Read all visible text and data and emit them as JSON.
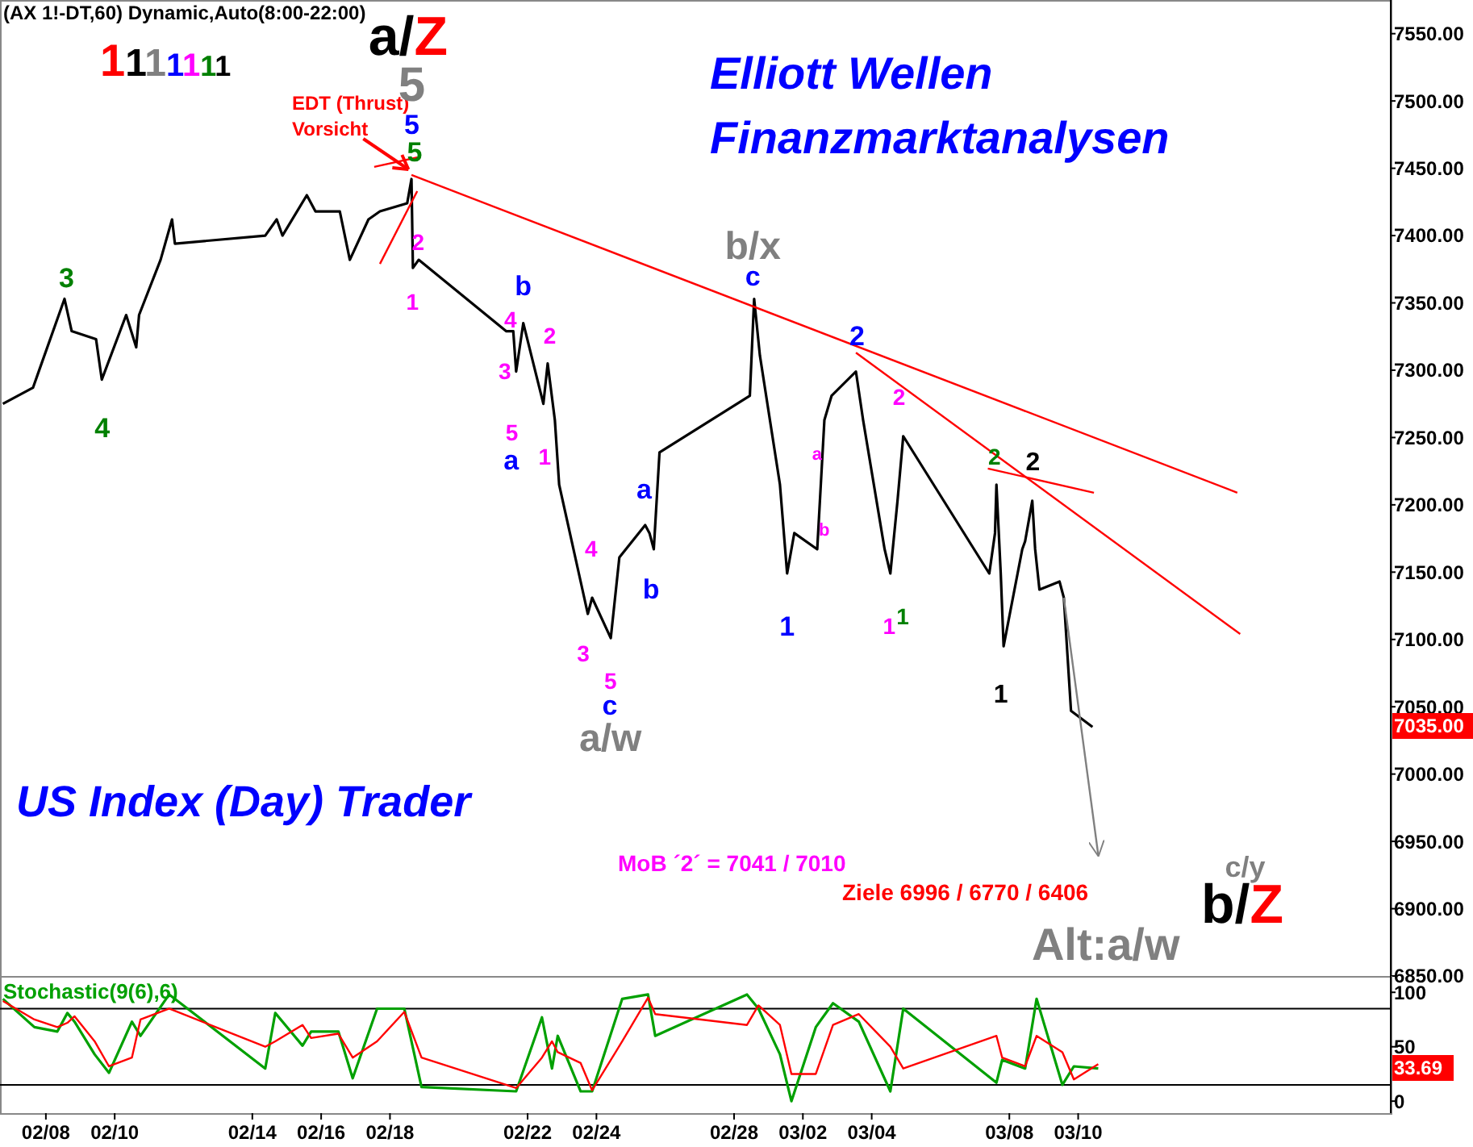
{
  "chart_data": [
    {
      "type": "line",
      "title": "Elliott Wellen",
      "subtitle": "Finanzmarktanalysen",
      "xlim": [
        "--02-06T16:00",
        "--03-19T02:00"
      ],
      "ylim": [
        6850,
        7575
      ],
      "yticks": [
        {
          "value": 6850,
          "label": "6850.00"
        },
        {
          "value": 6900,
          "label": "6900.00"
        },
        {
          "value": 6950,
          "label": "6950.00"
        },
        {
          "value": 7000,
          "label": "7000.00"
        },
        {
          "value": 7050,
          "label": "7050.00"
        },
        {
          "value": 7100,
          "label": "7100.00"
        },
        {
          "value": 7150,
          "label": "7150.00"
        },
        {
          "value": 7200,
          "label": "7200.00"
        },
        {
          "value": 7250,
          "label": "7250.00"
        },
        {
          "value": 7300,
          "label": "7300.00"
        },
        {
          "value": 7350,
          "label": "7350.00"
        },
        {
          "value": 7400,
          "label": "7400.00"
        },
        {
          "value": 7450,
          "label": "7450.00"
        },
        {
          "value": 7500,
          "label": "7500.00"
        },
        {
          "value": 7550,
          "label": "7550.00"
        }
      ],
      "tick_labels": "y",
      "grid": false,
      "series": [
        {
          "color": "#000000",
          "x": [
            "--02-06T18:00",
            "--02-07T15:00",
            "--02-07T19:00",
            "--02-08T13:00",
            "--02-08T18:00",
            "--02-09T11:00",
            "--02-09T15:00",
            "--02-10T08:00",
            "--02-10T15:00",
            "--02-10T17:00",
            "--02-11T08:00",
            "--02-11T16:00",
            "--02-11T18:00",
            "--02-14T09:00",
            "--02-14T17:00",
            "--02-14T21:00",
            "--02-15T14:00",
            "--02-15T20:00",
            "--02-16T13:00",
            "--02-16T20:00",
            "--02-17T09:00",
            "--02-17T17:00",
            "--02-18T12:00",
            "--02-18T15:00",
            "--02-18T16:00",
            "--02-18T20:00",
            "--02-21T09:00",
            "--02-21T14:00",
            "--02-21T16:00",
            "--02-21T21:00",
            "--02-22T11:00",
            "--02-22T14:00",
            "--02-22T19:00",
            "--02-22T22:00",
            "--02-23T13:00",
            "--02-23T18:00",
            "--02-23T21:00",
            "--02-24T10:00",
            "--02-24T16:00",
            "--02-25T10:00",
            "--02-25T13:00",
            "--02-25T16:00",
            "--02-25T20:00",
            "--02-28T11:00",
            "--02-28T14:00",
            "--02-28T18:00",
            "--03-01T08:00",
            "--03-01T13:00",
            "--03-01T18:00",
            "--03-02T10:00",
            "--03-02T15:00",
            "--03-02T20:00",
            "--03-03T13:00",
            "--03-03T18:00",
            "--03-04T09:00",
            "--03-04T13:00",
            "--03-04T18:00",
            "--03-04T22:00",
            "--03-07T10:00",
            "--03-07T14:00",
            "--03-07T15:00",
            "--03-07T18:00",
            "--03-07T20:00",
            "--03-08T09:00",
            "--03-08T11:00",
            "--03-08T16:00",
            "--03-08T18:00",
            "--03-08T21:00",
            "--03-09T11:00",
            "--03-09T14:00",
            "--03-09T19:00",
            "--03-10T10:00"
          ],
          "values": [
            7275,
            7287,
            7299,
            7353,
            7329,
            7323,
            7293,
            7341,
            7317,
            7341,
            7382,
            7412,
            7394,
            7400,
            7412,
            7400,
            7430,
            7418,
            7418,
            7382,
            7412,
            7418,
            7424,
            7442,
            7376,
            7382,
            7329,
            7329,
            7299,
            7335,
            7275,
            7305,
            7263,
            7215,
            7143,
            7119,
            7131,
            7101,
            7161,
            7185,
            7179,
            7167,
            7239,
            7281,
            7353,
            7311,
            7215,
            7149,
            7179,
            7167,
            7263,
            7281,
            7299,
            7263,
            7167,
            7149,
            7203,
            7251,
            7149,
            7179,
            7215,
            7149,
            7095,
            7167,
            7173,
            7203,
            7167,
            7137,
            7143,
            7131,
            7047,
            7035
          ]
        },
        {
          "color": "#ff0000",
          "x": [
            "--02-18T15:00",
            "--03-14T15:00"
          ],
          "values": [
            7445,
            7209
          ]
        },
        {
          "color": "#ff0000",
          "x": [
            "--03-03T13:00",
            "--03-14T17:00"
          ],
          "values": [
            7313,
            7104
          ]
        },
        {
          "color": "#ff0000",
          "x": [
            "--03-07T09:00",
            "--03-10T11:00"
          ],
          "values": [
            7227,
            7209
          ]
        },
        {
          "color": "#ff0000",
          "x": [
            "--02-17T13:00",
            "--02-18T19:00"
          ],
          "values": [
            7451,
            7458
          ]
        },
        {
          "color": "#ff0000",
          "x": [
            "--02-17T17:00",
            "--02-18T19:00"
          ],
          "values": [
            7379,
            7433
          ]
        },
        {
          "color": "#808080",
          "x": [
            "--03-09T14:00",
            "--03-10T14:00"
          ],
          "values": [
            7131,
            6940
          ]
        }
      ],
      "annotations": [
        "(AX 1!-DT,60) Dynamic,Auto(8:00-22:00)",
        "1111111",
        "US Index (Day) Trader",
        "EDT (Thrust)",
        "Vorsicht",
        "MoB ´2´ = 7041 / 7010",
        "Ziele 6996 / 6770 / 6406",
        "a/Z",
        "5",
        "5",
        "5",
        "3",
        "4",
        "2",
        "1",
        "4",
        "3",
        "b",
        "2",
        "5",
        "a",
        "1",
        "4",
        "3",
        "5",
        "c",
        "a/w",
        "a",
        "b",
        "b/x",
        "c",
        "1",
        "a",
        "b",
        "2",
        "1",
        "2",
        "1",
        "2",
        "2",
        "1",
        "c/y",
        "b/Z",
        "Alt:a/w",
        "7035.00"
      ]
    },
    {
      "type": "line",
      "title": "Stochastic(9(6),6)",
      "xlim": [
        "--02-06T16:00",
        "--03-19T02:00"
      ],
      "ylim": [
        -11,
        115
      ],
      "xticks": [
        {
          "value": "--02-08",
          "label": "02/08"
        },
        {
          "value": "--02-10",
          "label": "02/10"
        },
        {
          "value": "--02-14",
          "label": "02/14"
        },
        {
          "value": "--02-16",
          "label": "02/16"
        },
        {
          "value": "--02-18",
          "label": "02/18"
        },
        {
          "value": "--02-22",
          "label": "02/22"
        },
        {
          "value": "--02-24",
          "label": "02/24"
        },
        {
          "value": "--02-28",
          "label": "02/28"
        },
        {
          "value": "--03-02",
          "label": "03/02"
        },
        {
          "value": "--03-04",
          "label": "03/04"
        },
        {
          "value": "--03-08",
          "label": "03/08"
        },
        {
          "value": "--03-10",
          "label": "03/10"
        }
      ],
      "yticks": [
        0,
        50,
        100
      ],
      "grid": false,
      "ref_lines": [
        {
          "axis": "y",
          "value": 85,
          "color": "#000000"
        },
        {
          "axis": "y",
          "value": 15,
          "color": "#000000"
        }
      ],
      "series": [
        {
          "color": "#00a000",
          "x": [
            "--02-06T18:00",
            "--02-07T16:00",
            "--02-08T08:00",
            "--02-08T15:00",
            "--02-08T20:00",
            "--02-09T10:00",
            "--02-09T20:00",
            "--02-10T12:00",
            "--02-10T18:00",
            "--02-11T14:00",
            "--02-14T09:00",
            "--02-14T16:00",
            "--02-15T11:00",
            "--02-15T17:00",
            "--02-16T12:00",
            "--02-16T22:00",
            "--02-17T15:00",
            "--02-18T10:00",
            "--02-18T22:00",
            "--02-21T16:00",
            "--02-22T10:00",
            "--02-22T17:00",
            "--02-22T21:00",
            "--02-23T13:00",
            "--02-23T21:00",
            "--02-24T18:00",
            "--02-25T12:00",
            "--02-25T17:00",
            "--02-28T09:00",
            "--02-28T17:00",
            "--03-01T08:00",
            "--03-01T16:00",
            "--03-02T09:00",
            "--03-02T21:00",
            "--03-03T15:00",
            "--03-04T13:00",
            "--03-04T22:00",
            "--03-07T15:00",
            "--03-07T19:00",
            "--03-08T11:00",
            "--03-08T19:00",
            "--03-09T13:00",
            "--03-09T21:00",
            "--03-10T14:00"
          ],
          "values": [
            94,
            68,
            64,
            81,
            73,
            43,
            26,
            73,
            60,
            98,
            30,
            81,
            51,
            64,
            64,
            21,
            85,
            85,
            13,
            9,
            77,
            30,
            60,
            9,
            9,
            94,
            98,
            60,
            98,
            85,
            43,
            0,
            68,
            90,
            73,
            9,
            85,
            17,
            38,
            30,
            94,
            15,
            32,
            30
          ]
        },
        {
          "color": "#ff0000",
          "x": [
            "--02-06T18:00",
            "--02-07T16:00",
            "--02-08T08:00",
            "--02-08T15:00",
            "--02-08T20:00",
            "--02-09T10:00",
            "--02-09T20:00",
            "--02-10T12:00",
            "--02-10T18:00",
            "--02-11T14:00",
            "--02-14T09:00",
            "--02-14T16:00",
            "--02-15T11:00",
            "--02-15T17:00",
            "--02-16T12:00",
            "--02-16T22:00",
            "--02-17T15:00",
            "--02-18T10:00",
            "--02-18T22:00",
            "--02-21T16:00",
            "--02-22T10:00",
            "--02-22T17:00",
            "--02-22T21:00",
            "--02-23T13:00",
            "--02-23T21:00",
            "--02-24T18:00",
            "--02-25T12:00",
            "--02-25T17:00",
            "--02-28T09:00",
            "--02-28T17:00",
            "--03-01T08:00",
            "--03-01T16:00",
            "--03-02T09:00",
            "--03-02T21:00",
            "--03-03T15:00",
            "--03-04T13:00",
            "--03-04T22:00",
            "--03-07T15:00",
            "--03-07T19:00",
            "--03-08T11:00",
            "--03-08T19:00",
            "--03-09T13:00",
            "--03-09T21:00",
            "--03-10T14:00"
          ],
          "values": [
            92,
            75,
            68,
            72,
            78,
            55,
            32,
            40,
            75,
            85,
            50,
            55,
            70,
            58,
            62,
            40,
            55,
            82,
            40,
            12,
            40,
            55,
            45,
            35,
            10,
            55,
            95,
            80,
            70,
            88,
            70,
            25,
            25,
            70,
            80,
            50,
            30,
            60,
            40,
            32,
            60,
            45,
            20,
            34
          ]
        }
      ],
      "annotations": [
        "33.69"
      ]
    }
  ]
}
